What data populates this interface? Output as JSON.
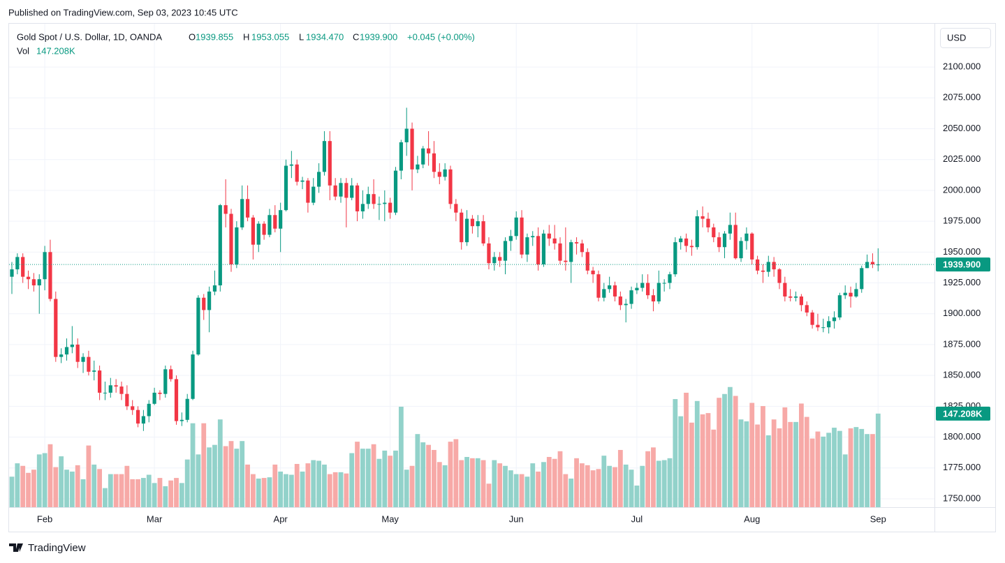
{
  "published": "Published on TradingView.com, Sep 03, 2023 10:45 UTC",
  "currency_button": "USD",
  "footer": "TradingView",
  "chart_data": {
    "type": "candlestick",
    "title": "Gold Spot / U.S. Dollar, 1D, OANDA",
    "ohlc_legend": [
      {
        "label": "O",
        "value": "1939.855"
      },
      {
        "label": "H",
        "value": "1953.055"
      },
      {
        "label": "L",
        "value": "1934.470"
      },
      {
        "label": "C",
        "value": "1939.900"
      }
    ],
    "change_label": "+0.045 (+0.00%)",
    "volume_legend": {
      "label": "Vol",
      "value": "147.208K"
    },
    "last_price_label": "1939.900",
    "last_volume_label": "147.208K",
    "up_color": "#089981",
    "down_color": "#f23645",
    "volume_up_color": "#92d2ca",
    "volume_down_color": "#f7a9a7",
    "grid": true,
    "categories": [
      null,
      null,
      null,
      null,
      null,
      null,
      "Feb",
      null,
      null,
      null,
      null,
      null,
      null,
      null,
      null,
      null,
      null,
      null,
      null,
      null,
      null,
      null,
      null,
      null,
      null,
      null,
      "Mar",
      null,
      null,
      null,
      null,
      null,
      null,
      null,
      null,
      null,
      null,
      null,
      null,
      null,
      null,
      null,
      null,
      null,
      null,
      null,
      null,
      null,
      null,
      "Apr",
      null,
      null,
      null,
      null,
      null,
      null,
      null,
      null,
      null,
      null,
      null,
      null,
      null,
      null,
      null,
      null,
      null,
      null,
      null,
      "May",
      null,
      null,
      null,
      null,
      null,
      null,
      null,
      null,
      null,
      null,
      null,
      null,
      null,
      null,
      null,
      null,
      null,
      null,
      null,
      null,
      null,
      null,
      "Jun",
      null,
      null,
      null,
      null,
      null,
      null,
      null,
      null,
      null,
      null,
      null,
      null,
      null,
      null,
      null,
      null,
      null,
      null,
      null,
      null,
      null,
      "Jul",
      null,
      null,
      null,
      null,
      null,
      null,
      null,
      null,
      null,
      null,
      null,
      null,
      null,
      null,
      null,
      null,
      null,
      null,
      null,
      null,
      "Aug",
      null,
      null,
      null,
      null,
      null,
      null,
      null,
      null,
      null,
      null,
      null,
      null,
      null,
      null,
      null,
      null,
      null,
      null,
      null,
      null,
      null,
      null,
      "Sep"
    ],
    "open": [
      1930,
      1936,
      1946,
      1930,
      1928,
      1923,
      1928,
      1950,
      1912,
      1865,
      1867,
      1873,
      1875,
      1861,
      1865,
      1853,
      1854,
      1836,
      1836,
      1842,
      1841,
      1835,
      1825,
      1822,
      1811,
      1817,
      1827,
      1836,
      1835,
      1855,
      1847,
      1813,
      1814,
      1831,
      1867,
      1913,
      1903,
      1918,
      1923,
      1988,
      1981,
      1940,
      1970,
      1993,
      1978,
      1956,
      1973,
      1964,
      1980,
      1969,
      1984,
      2020,
      2021,
      2007,
      2008,
      1990,
      2003,
      2015,
      2040,
      2004,
      1995,
      2006,
      1994,
      2004,
      1983,
      1989,
      1997,
      1989,
      1989,
      1990,
      1982,
      2016,
      2039,
      2050,
      2017,
      2021,
      2034,
      2030,
      2015,
      2011,
      2017,
      1989,
      1982,
      1958,
      1977,
      1971,
      1975,
      1957,
      1941,
      1946,
      1943,
      1959,
      1963,
      1978,
      1948,
      1962,
      1963,
      1940,
      1965,
      1961,
      1957,
      1943,
      1942,
      1958,
      1957,
      1950,
      1935,
      1932,
      1913,
      1920,
      1923,
      1914,
      1907,
      1908,
      1919,
      1921,
      1925,
      1915,
      1910,
      1925,
      1925,
      1932,
      1958,
      1961,
      1955,
      1954,
      1979,
      1977,
      1970,
      1962,
      1954,
      1965,
      1972,
      1945,
      1959,
      1965,
      1944,
      1935,
      1934,
      1942,
      1936,
      1925,
      1914,
      1913,
      1914,
      1907,
      1901,
      1891,
      1889,
      1889,
      1894,
      1897,
      1915,
      1917,
      1914,
      1920,
      1937,
      1942,
      1939.855
    ],
    "high": [
      1942,
      1949,
      1949,
      1935,
      1933,
      1932,
      1955,
      1960,
      1918,
      1872,
      1880,
      1890,
      1880,
      1868,
      1870,
      1862,
      1858,
      1845,
      1848,
      1847,
      1845,
      1842,
      1830,
      1825,
      1822,
      1830,
      1840,
      1838,
      1858,
      1858,
      1850,
      1820,
      1835,
      1870,
      1915,
      1916,
      1922,
      1935,
      1989,
      2009,
      1985,
      1975,
      2004,
      2004,
      1980,
      1975,
      1975,
      1985,
      1988,
      1990,
      2025,
      2032,
      2025,
      2011,
      2010,
      2010,
      2022,
      2048,
      2048,
      2010,
      2010,
      2010,
      2010,
      2006,
      2000,
      2003,
      2009,
      1995,
      2000,
      1994,
      2019,
      2041,
      2067,
      2055,
      2028,
      2036,
      2048,
      2040,
      2022,
      2022,
      2020,
      1993,
      1985,
      1984,
      1980,
      1980,
      1980,
      1962,
      1950,
      1950,
      1962,
      1968,
      1983,
      1984,
      1965,
      1967,
      1970,
      1968,
      1972,
      1972,
      1962,
      1970,
      1960,
      1962,
      1960,
      1953,
      1938,
      1935,
      1925,
      1930,
      1926,
      1918,
      1912,
      1922,
      1925,
      1932,
      1932,
      1920,
      1935,
      1928,
      1934,
      1962,
      1963,
      1965,
      1960,
      1984,
      1987,
      1982,
      1973,
      1966,
      1967,
      1982,
      1982,
      1962,
      1970,
      1966,
      1947,
      1940,
      1947,
      1946,
      1937,
      1930,
      1920,
      1918,
      1916,
      1910,
      1903,
      1900,
      1896,
      1898,
      1902,
      1917,
      1923,
      1922,
      1925,
      1939,
      1948,
      1949,
      1953.055
    ],
    "low": [
      1916,
      1932,
      1925,
      1920,
      1918,
      1900,
      1919,
      1910,
      1861,
      1860,
      1862,
      1868,
      1856,
      1852,
      1850,
      1846,
      1830,
      1830,
      1832,
      1836,
      1830,
      1822,
      1818,
      1808,
      1805,
      1812,
      1826,
      1830,
      1832,
      1845,
      1810,
      1809,
      1812,
      1830,
      1866,
      1895,
      1885,
      1915,
      1918,
      1970,
      1934,
      1937,
      1968,
      1975,
      1944,
      1950,
      1960,
      1962,
      1966,
      1950,
      1983,
      2010,
      2004,
      2001,
      1982,
      1988,
      1998,
      2012,
      1992,
      1992,
      1990,
      1970,
      1992,
      1975,
      1977,
      1985,
      1985,
      1976,
      1975,
      1977,
      1980,
      2009,
      2028,
      2000,
      2014,
      2018,
      2020,
      2010,
      2005,
      2008,
      1985,
      1975,
      1952,
      1955,
      1965,
      1962,
      1955,
      1936,
      1935,
      1938,
      1932,
      1951,
      1960,
      1945,
      1942,
      1955,
      1935,
      1938,
      1955,
      1952,
      1940,
      1935,
      1925,
      1948,
      1946,
      1932,
      1925,
      1910,
      1910,
      1917,
      1910,
      1903,
      1893,
      1904,
      1916,
      1918,
      1912,
      1902,
      1908,
      1918,
      1920,
      1930,
      1952,
      1950,
      1947,
      1952,
      1970,
      1966,
      1958,
      1950,
      1945,
      1960,
      1944,
      1942,
      1952,
      1940,
      1932,
      1925,
      1930,
      1930,
      1920,
      1910,
      1910,
      1910,
      1902,
      1898,
      1888,
      1886,
      1885,
      1884,
      1888,
      1895,
      1912,
      1905,
      1913,
      1917,
      1937,
      1937,
      1934.47
    ],
    "close": [
      1936,
      1946,
      1930,
      1928,
      1923,
      1928,
      1950,
      1912,
      1865,
      1867,
      1873,
      1875,
      1861,
      1865,
      1853,
      1854,
      1836,
      1836,
      1842,
      1841,
      1835,
      1825,
      1822,
      1811,
      1817,
      1827,
      1836,
      1835,
      1855,
      1847,
      1813,
      1814,
      1831,
      1867,
      1913,
      1903,
      1918,
      1923,
      1988,
      1981,
      1940,
      1970,
      1993,
      1978,
      1956,
      1973,
      1964,
      1980,
      1969,
      1984,
      2020,
      2021,
      2007,
      2008,
      1990,
      2003,
      2015,
      2040,
      2004,
      1995,
      2006,
      1994,
      2004,
      1983,
      1989,
      1997,
      1989,
      1989,
      1990,
      1982,
      2016,
      2039,
      2050,
      2017,
      2021,
      2034,
      2030,
      2015,
      2011,
      2017,
      1989,
      1982,
      1958,
      1977,
      1971,
      1975,
      1957,
      1941,
      1946,
      1943,
      1959,
      1963,
      1978,
      1948,
      1962,
      1963,
      1940,
      1965,
      1961,
      1957,
      1943,
      1942,
      1958,
      1957,
      1950,
      1935,
      1932,
      1913,
      1920,
      1923,
      1914,
      1907,
      1908,
      1919,
      1921,
      1925,
      1915,
      1910,
      1925,
      1925,
      1932,
      1958,
      1961,
      1955,
      1954,
      1979,
      1977,
      1970,
      1962,
      1954,
      1965,
      1972,
      1945,
      1959,
      1965,
      1944,
      1935,
      1934,
      1942,
      1936,
      1925,
      1914,
      1913,
      1914,
      1907,
      1901,
      1891,
      1889,
      1889,
      1894,
      1897,
      1915,
      1917,
      1914,
      1920,
      1937,
      1942,
      1940,
      1939.9
    ],
    "volume": [
      48,
      69,
      65,
      54,
      59,
      83,
      85,
      99,
      63,
      80,
      59,
      56,
      66,
      44,
      97,
      67,
      60,
      30,
      52,
      52,
      52,
      65,
      44,
      44,
      46,
      51,
      38,
      46,
      33,
      42,
      46,
      38,
      75,
      132,
      83,
      132,
      94,
      98,
      138,
      96,
      104,
      92,
      104,
      67,
      52,
      45,
      46,
      47,
      67,
      56,
      52,
      51,
      68,
      56,
      69,
      74,
      73,
      67,
      52,
      55,
      55,
      53,
      85,
      103,
      92,
      92,
      99,
      76,
      89,
      81,
      89,
      158,
      59,
      65,
      115,
      102,
      98,
      90,
      71,
      66,
      103,
      107,
      74,
      79,
      77,
      77,
      74,
      37,
      74,
      69,
      65,
      58,
      52,
      52,
      48,
      69,
      56,
      71,
      79,
      76,
      88,
      52,
      45,
      77,
      69,
      66,
      58,
      60,
      81,
      65,
      63,
      90,
      67,
      59,
      34,
      65,
      88,
      94,
      73,
      74,
      77,
      170,
      143,
      180,
      133,
      167,
      146,
      148,
      122,
      172,
      178,
      189,
      175,
      138,
      135,
      164,
      130,
      159,
      113,
      138,
      124,
      157,
      134,
      134,
      163,
      142,
      108,
      119,
      111,
      117,
      125,
      120,
      83,
      124,
      126,
      123,
      115,
      115,
      147.208
    ],
    "ylim": [
      1743.2,
      2135.1
    ],
    "vlim": [
      0,
      760.3
    ],
    "yticks": [
      {
        "value": 1750,
        "label": "1750.000"
      },
      {
        "value": 1775,
        "label": "1775.000"
      },
      {
        "value": 1800,
        "label": "1800.000"
      },
      {
        "value": 1825,
        "label": "1825.000"
      },
      {
        "value": 1850,
        "label": "1850.000"
      },
      {
        "value": 1875,
        "label": "1875.000"
      },
      {
        "value": 1900,
        "label": "1900.000"
      },
      {
        "value": 1925,
        "label": "1925.000"
      },
      {
        "value": 1950,
        "label": "1950.000"
      },
      {
        "value": 1975,
        "label": "1975.000"
      },
      {
        "value": 2000,
        "label": "2000.000"
      },
      {
        "value": 2025,
        "label": "2025.000"
      },
      {
        "value": 2050,
        "label": "2050.000"
      },
      {
        "value": 2075,
        "label": "2075.000"
      },
      {
        "value": 2100,
        "label": "2100.000"
      }
    ]
  }
}
